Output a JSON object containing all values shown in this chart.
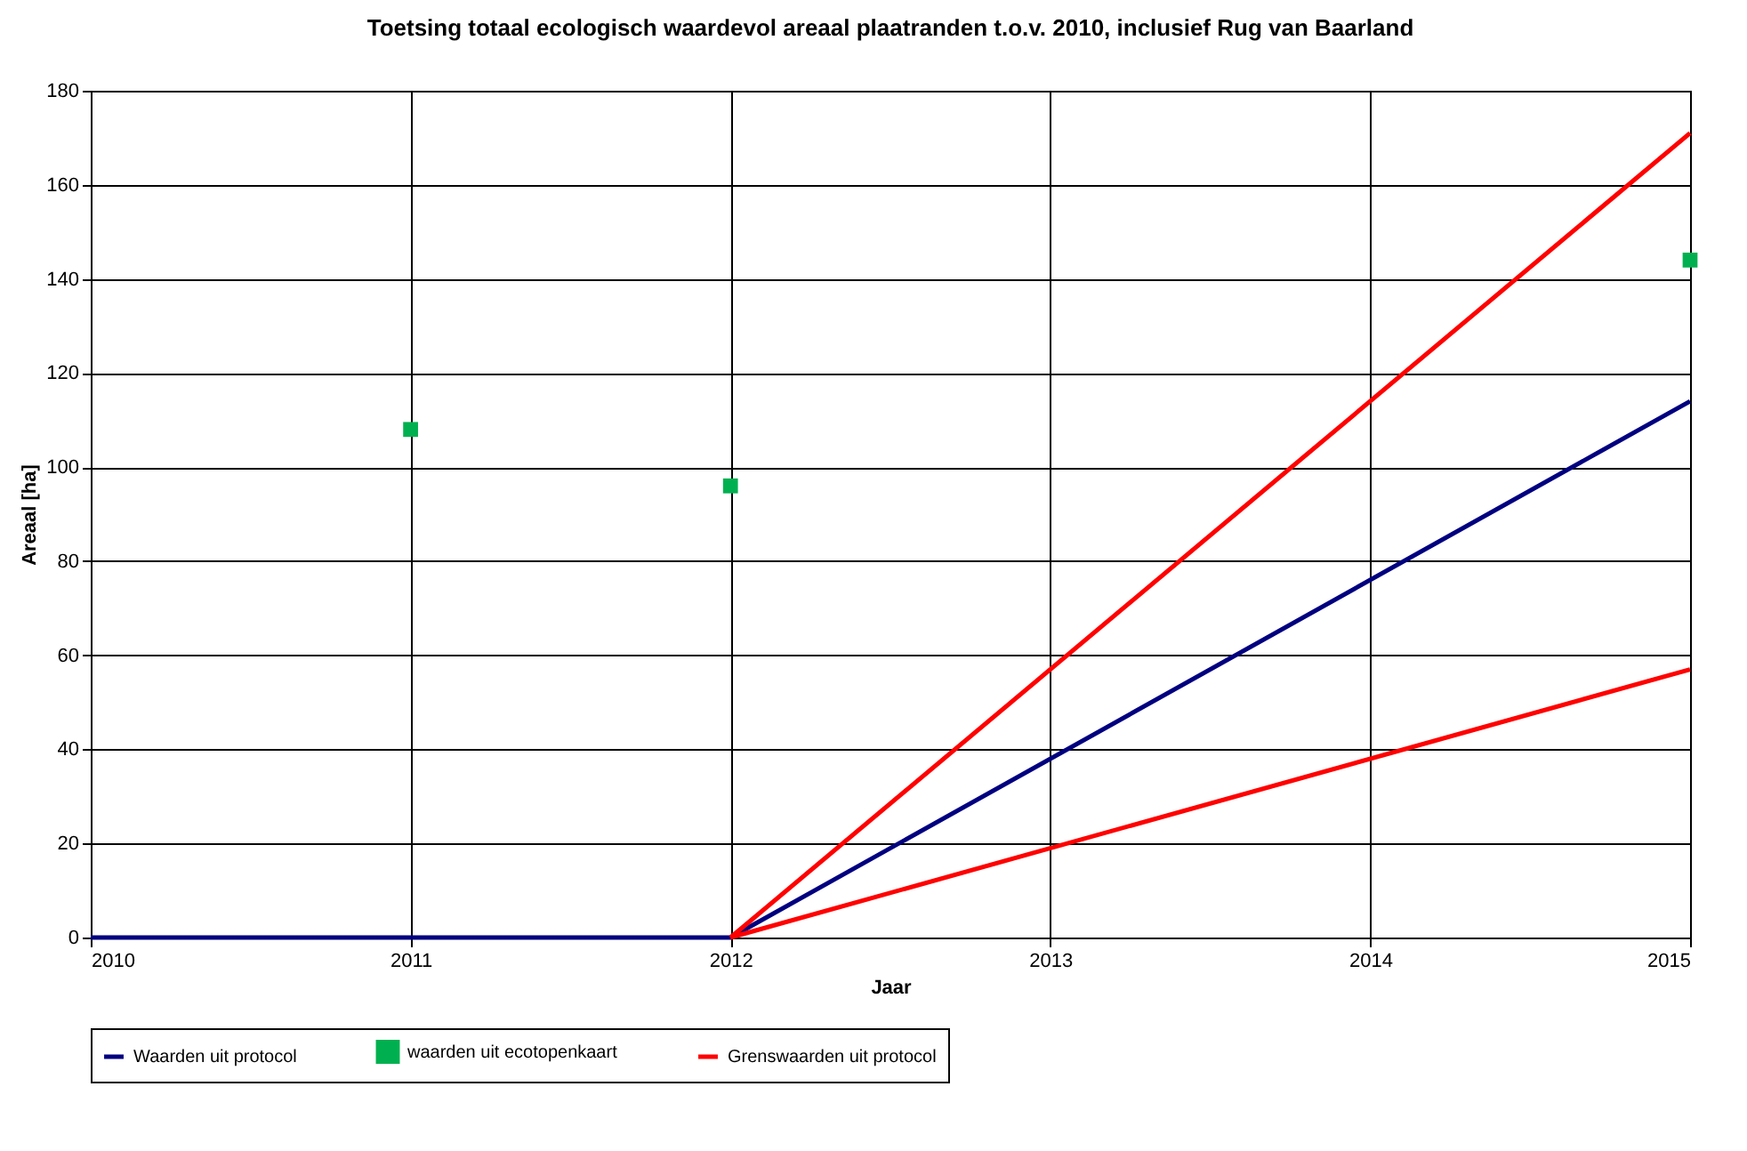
{
  "chart_data": {
    "type": "line",
    "title": "Toetsing totaal ecologisch waardevol areaal plaatranden t.o.v. 2010, inclusief Rug van Baarland",
    "xlabel": "Jaar",
    "ylabel": "Areaal [ha]",
    "xlim": [
      2010,
      2015
    ],
    "xticks": [
      2010,
      2011,
      2012,
      2013,
      2014,
      2015
    ],
    "ylim": [
      0,
      180
    ],
    "yticks": [
      0,
      20,
      40,
      60,
      80,
      100,
      120,
      140,
      160,
      180
    ],
    "grid": true,
    "legend": "bottom",
    "series": [
      {
        "name": "Waarden uit protocol",
        "color": "#000080",
        "x": [
          2010,
          2012,
          2015
        ],
        "values": [
          0,
          0,
          114
        ]
      },
      {
        "name": "waarden uit ecotopenkaart",
        "type": "scatter",
        "marker": "square",
        "color": "#00b050",
        "x": [
          2011,
          2012,
          2015
        ],
        "values": [
          108,
          96,
          144
        ]
      },
      {
        "name": "Grenswaarden uit protocol",
        "color": "#ff0000",
        "x": [
          2012,
          2015
        ],
        "values": [
          0,
          171
        ]
      },
      {
        "color": "#ff0000",
        "x": [
          2012,
          2015
        ],
        "values": [
          0,
          57
        ]
      }
    ]
  }
}
